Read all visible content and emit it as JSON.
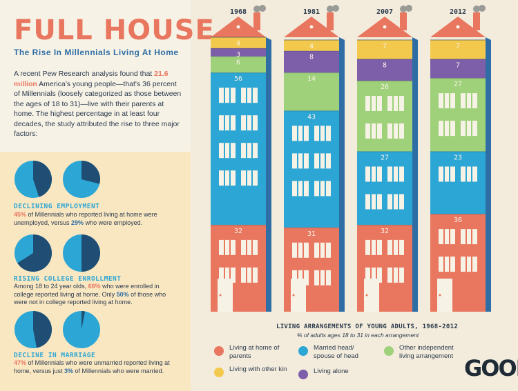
{
  "header": {
    "title": "FULL HOUSE",
    "subtitle": "The Rise In Millennials Living At Home",
    "intro_highlight": "21.6 million",
    "intro_before": "A recent Pew Research analysis found that ",
    "intro_after": " America's young people—that's 36 percent of Millennials (loosely categorized as those between the ages of 18 to 31)—live with their parents at home. The highest percentage in at least four decades, the study attributed the rise to three major factors:"
  },
  "factors": [
    {
      "heading": "DECLINING EMPLOYMENT",
      "pct_a": "45%",
      "text_a": " of Millennials who reported living at home were unemployed, versus ",
      "pct_b": "29%",
      "text_b": " who were employed.",
      "pie_values": [
        45,
        29
      ]
    },
    {
      "heading": "RISING COLLEGE ENROLLMENT",
      "text_pre": "Among 18 to 24 year olds, ",
      "pct_a": "66%",
      "text_a": " who were enrolled in college reported living at home. Only ",
      "pct_b": "50%",
      "text_b": " of those who were not in college reported living at home.",
      "pie_values": [
        66,
        50
      ]
    },
    {
      "heading": "DECLINE IN MARRIAGE",
      "pct_a": "47%",
      "text_a": " of Millennials who were unmarried reported living at home, versus just ",
      "pct_b": "3%",
      "text_b": " of Millennials who were married.",
      "pie_values": [
        47,
        3
      ]
    }
  ],
  "colors": {
    "parents": "#e9765f",
    "married": "#2ca6d4",
    "independent": "#9fd17a",
    "kin": "#f2c94c",
    "alone": "#7d5ea8",
    "chimney": "#e9765f",
    "shadow": "#2f6ea4",
    "pie_light": "#2ca6d4",
    "pie_dark": "#1f4d73"
  },
  "chart_data": {
    "type": "bar",
    "stacked": true,
    "title": "LIVING ARRANGEMENTS OF YOUNG ADULTS, 1968-2012",
    "subtitle": "% of adults ages 18 to 31 in each arrangement",
    "categories": [
      "1968",
      "1981",
      "2007",
      "2012"
    ],
    "series": [
      {
        "name": "Living at home of parents",
        "key": "parents",
        "values": [
          32,
          31,
          32,
          36
        ]
      },
      {
        "name": "Married head/ spouse of head",
        "key": "married",
        "values": [
          56,
          43,
          27,
          23
        ]
      },
      {
        "name": "Other independent living arrangement",
        "key": "independent",
        "values": [
          6,
          14,
          26,
          27
        ]
      },
      {
        "name": "Living alone",
        "key": "alone",
        "values": [
          3,
          8,
          8,
          7
        ]
      },
      {
        "name": "Living with other kin",
        "key": "kin",
        "values": [
          4,
          4,
          7,
          7
        ]
      }
    ],
    "legend_placement": "bottom"
  },
  "brand": "GOOD"
}
